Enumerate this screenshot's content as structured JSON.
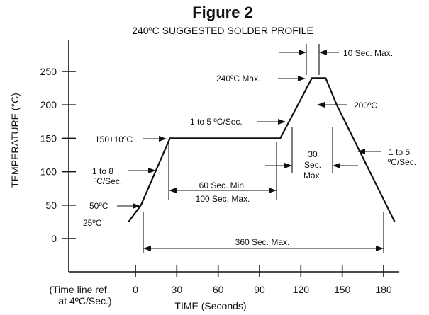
{
  "chart_data": {
    "type": "line",
    "title": "Figure 2",
    "subtitle": "240ºC SUGGESTED SOLDER PROFILE",
    "xlabel": "TIME (Seconds)",
    "ylabel": "TEMPERATURE (°C)",
    "x_ticks": [
      0,
      30,
      60,
      90,
      120,
      150,
      180
    ],
    "y_ticks": [
      0,
      50,
      100,
      150,
      200,
      250
    ],
    "xlim": [
      -25,
      200
    ],
    "ylim": [
      -50,
      300
    ],
    "x_ref_note": [
      "(Time line ref.",
      "at 4ºC/Sec.)"
    ],
    "series": [
      {
        "x": [
          -5,
          4,
          25,
          105,
          128,
          138,
          146,
          188
        ],
        "y": [
          25,
          50,
          150,
          150,
          240,
          240,
          200,
          25
        ]
      }
    ],
    "annotations": {
      "peak_max": "240ºC Max.",
      "peak_dwell": "10 Sec. Max.",
      "ramp_up": "1 to 5 ºC/Sec.",
      "soak_temp": "150±10ºC",
      "ramp_initial": [
        "1 to 8",
        "ºC/Sec."
      ],
      "t50": "50ºC",
      "t25": "25ºC",
      "t200": "200ºC",
      "above200": [
        "30",
        "Sec.",
        "Max."
      ],
      "ramp_down": [
        "1 to 5",
        "ºC/Sec."
      ],
      "soak_min": "60 Sec. Min.",
      "soak_max": "100 Sec. Max.",
      "total": "360 Sec. Max."
    }
  }
}
